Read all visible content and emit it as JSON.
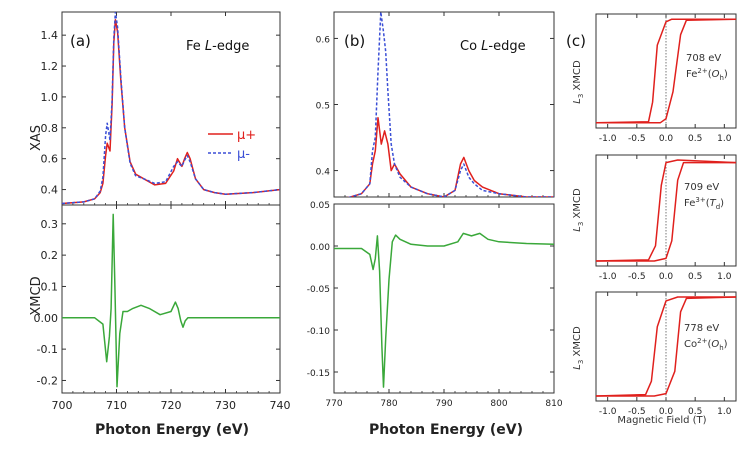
{
  "colors": {
    "mu_plus": "#e0201d",
    "mu_minus": "#3b4fd6",
    "xmcd": "#3aa83a",
    "loop": "#e0201d",
    "axis": "#333333"
  },
  "panels": {
    "a": {
      "tag": "(a)",
      "edge_prefix": "Fe ",
      "edge_italic": "L",
      "edge_suffix": "-edge",
      "xas_ylabel": "XAS",
      "xmcd_ylabel": "XMCD",
      "xlabel": "Photon Energy (eV)",
      "legend": [
        {
          "label": "μ+"
        },
        {
          "label": "μ-"
        }
      ]
    },
    "b": {
      "tag": "(b)",
      "edge_prefix": "Co ",
      "edge_italic": "L",
      "edge_suffix": "-edge",
      "xlabel": "Photon Energy (eV)"
    },
    "c": {
      "tag": "(c)",
      "xlabel": "Magnetic Field (T)",
      "ylabel_sub": "3",
      "ylabel_main": " XMCD",
      "loops": [
        {
          "energy": "708 eV",
          "ion": "Fe",
          "charge": "2+",
          "site": "O",
          "site_sub": "h"
        },
        {
          "energy": "709 eV",
          "ion": "Fe",
          "charge": "3+",
          "site": "T",
          "site_sub": "d"
        },
        {
          "energy": "778 eV",
          "ion": "Co",
          "charge": "2+",
          "site": "O",
          "site_sub": "h"
        }
      ]
    }
  },
  "chart_data": [
    {
      "type": "line",
      "panel": "a-top",
      "title": "Fe L-edge",
      "xlabel": "",
      "ylabel": "XAS",
      "xlim": [
        700,
        740
      ],
      "ylim": [
        0.3,
        1.55
      ],
      "xticks": [
        700,
        710,
        720,
        730,
        740
      ],
      "yticks": [
        0.4,
        0.6,
        0.8,
        1.0,
        1.2,
        1.4
      ],
      "ytick_labels": [
        "0.4",
        "0.6",
        "0.8",
        "1.0",
        "1.2",
        "1.4"
      ],
      "series": [
        {
          "name": "μ+",
          "color": "#e0201d",
          "dash": "",
          "x": [
            700,
            704,
            706,
            707,
            707.5,
            708,
            708.3,
            708.8,
            709.2,
            709.5,
            709.8,
            710.2,
            710.8,
            711.5,
            712.5,
            713.5,
            715,
            717,
            719,
            720.5,
            721.2,
            722,
            722.5,
            723,
            723.5,
            724.5,
            726,
            728,
            730,
            735,
            740
          ],
          "y": [
            0.31,
            0.32,
            0.34,
            0.38,
            0.44,
            0.62,
            0.7,
            0.65,
            0.95,
            1.35,
            1.5,
            1.42,
            1.1,
            0.8,
            0.58,
            0.5,
            0.47,
            0.43,
            0.44,
            0.52,
            0.6,
            0.55,
            0.6,
            0.64,
            0.6,
            0.47,
            0.4,
            0.38,
            0.37,
            0.38,
            0.4
          ]
        },
        {
          "name": "μ-",
          "color": "#3b4fd6",
          "dash": "3,2",
          "x": [
            700,
            704,
            706,
            707,
            707.5,
            708,
            708.3,
            708.8,
            709.2,
            709.5,
            709.8,
            710.2,
            710.8,
            711.5,
            712.5,
            713.5,
            715,
            717,
            719,
            720.5,
            721.2,
            722,
            722.5,
            723,
            723.5,
            724.5,
            726,
            728,
            730,
            735,
            740
          ],
          "y": [
            0.31,
            0.32,
            0.34,
            0.39,
            0.48,
            0.75,
            0.83,
            0.72,
            0.98,
            1.38,
            1.55,
            1.45,
            1.12,
            0.8,
            0.57,
            0.49,
            0.47,
            0.44,
            0.45,
            0.55,
            0.58,
            0.55,
            0.59,
            0.62,
            0.58,
            0.47,
            0.4,
            0.38,
            0.37,
            0.38,
            0.4
          ]
        }
      ],
      "legend": "right"
    },
    {
      "type": "line",
      "panel": "a-bottom",
      "xlabel": "Photon Energy (eV)",
      "ylabel": "XMCD",
      "xlim": [
        700,
        740
      ],
      "ylim": [
        -0.24,
        0.36
      ],
      "xticks": [
        700,
        710,
        720,
        730,
        740
      ],
      "yticks": [
        -0.2,
        -0.1,
        0.0,
        0.1,
        0.2,
        0.3
      ],
      "ytick_labels": [
        "-0.2",
        "-0.1",
        "0.00",
        "0.1",
        "0.2",
        "0.3"
      ],
      "series": [
        {
          "name": "",
          "color": "#3aa83a",
          "dash": "",
          "x": [
            700,
            706,
            707.5,
            708.2,
            708.7,
            709.0,
            709.4,
            709.7,
            710.1,
            710.6,
            711.2,
            712,
            713,
            714.5,
            716,
            718,
            720,
            720.8,
            721.3,
            721.8,
            722.2,
            722.6,
            723.1,
            724,
            726,
            730,
            740
          ],
          "y": [
            0.0,
            0.0,
            -0.02,
            -0.14,
            -0.06,
            0.03,
            0.33,
            0.1,
            -0.22,
            -0.05,
            0.02,
            0.02,
            0.03,
            0.04,
            0.03,
            0.01,
            0.02,
            0.05,
            0.03,
            -0.01,
            -0.03,
            -0.01,
            0.0,
            0.0,
            0.0,
            0.0,
            0.0
          ]
        }
      ]
    },
    {
      "type": "line",
      "panel": "b-top",
      "title": "Co L-edge",
      "xlim": [
        770,
        810
      ],
      "ylim": [
        0.36,
        0.64
      ],
      "xticks": [
        770,
        780,
        790,
        800,
        810
      ],
      "yticks": [
        0.4,
        0.5,
        0.6
      ],
      "ytick_labels": [
        "0.4",
        "0.5",
        "0.6"
      ],
      "series": [
        {
          "name": "μ+",
          "color": "#e0201d",
          "dash": "",
          "x": [
            770,
            773,
            775,
            776.5,
            777,
            777.5,
            778,
            778.6,
            779.2,
            779.8,
            780.4,
            781,
            782,
            784,
            787,
            790,
            792,
            793,
            793.6,
            794.5,
            795.5,
            797,
            800,
            805,
            810
          ],
          "y": [
            0.355,
            0.36,
            0.365,
            0.38,
            0.41,
            0.43,
            0.48,
            0.44,
            0.46,
            0.44,
            0.4,
            0.41,
            0.395,
            0.375,
            0.365,
            0.36,
            0.37,
            0.41,
            0.42,
            0.4,
            0.385,
            0.375,
            0.365,
            0.36,
            0.36
          ]
        },
        {
          "name": "μ-",
          "color": "#3b4fd6",
          "dash": "3,2",
          "x": [
            770,
            773,
            775,
            776.5,
            777,
            777.5,
            778,
            778.5,
            779.0,
            779.4,
            779.8,
            780.4,
            781,
            782,
            784,
            787,
            790,
            792,
            793,
            793.6,
            794.5,
            795.5,
            797,
            800,
            805,
            810
          ],
          "y": [
            0.355,
            0.36,
            0.365,
            0.38,
            0.43,
            0.45,
            0.55,
            0.64,
            0.61,
            0.58,
            0.52,
            0.44,
            0.41,
            0.39,
            0.375,
            0.365,
            0.36,
            0.37,
            0.4,
            0.41,
            0.39,
            0.38,
            0.37,
            0.365,
            0.36,
            0.36
          ]
        }
      ]
    },
    {
      "type": "line",
      "panel": "b-bottom",
      "xlabel": "Photon Energy (eV)",
      "ylabel": "",
      "xlim": [
        770,
        810
      ],
      "ylim": [
        -0.175,
        0.05
      ],
      "xticks": [
        770,
        780,
        790,
        800,
        810
      ],
      "yticks": [
        -0.15,
        -0.1,
        -0.05,
        0.0,
        0.05
      ],
      "ytick_labels": [
        "-0.15",
        "-0.10",
        "-0.05",
        "0.00",
        "0.05"
      ],
      "series": [
        {
          "name": "",
          "color": "#3aa83a",
          "dash": "",
          "x": [
            770,
            775,
            776.5,
            777.1,
            777.5,
            777.9,
            778.3,
            778.7,
            779.0,
            779.4,
            780.0,
            780.6,
            781.2,
            782,
            784,
            787,
            790,
            792.5,
            793.5,
            795,
            796.5,
            798,
            800,
            805,
            810
          ],
          "y": [
            -0.003,
            -0.003,
            -0.01,
            -0.028,
            -0.015,
            0.012,
            -0.03,
            -0.12,
            -0.168,
            -0.11,
            -0.04,
            0.005,
            0.013,
            0.008,
            0.002,
            0.0,
            0.0,
            0.005,
            0.015,
            0.012,
            0.015,
            0.008,
            0.005,
            0.003,
            0.002
          ]
        }
      ]
    },
    {
      "type": "line",
      "panel": "c-1",
      "xlim": [
        -1.2,
        1.2
      ],
      "ylim": [
        -1.1,
        1.1
      ],
      "xticks": [
        -1.0,
        -0.5,
        0.0,
        0.5,
        1.0
      ],
      "xtick_labels": [
        "-1.0",
        "-0.5",
        "0.0",
        "0.5",
        "1.0"
      ],
      "series": [
        {
          "name": "",
          "color": "#e0201d",
          "dash": "",
          "x": [
            -1.2,
            -0.3,
            -0.23,
            -0.15,
            0.0,
            0.1,
            0.18,
            0.3,
            1.2
          ],
          "y": [
            -1.0,
            -0.98,
            -0.6,
            0.5,
            0.95,
            1.0,
            1.0,
            1.0,
            1.0
          ]
        },
        {
          "name": "",
          "color": "#e0201d",
          "dash": "",
          "x": [
            1.2,
            0.35,
            0.25,
            0.12,
            0.0,
            -0.1,
            -0.2,
            -0.3,
            -1.2
          ],
          "y": [
            1.0,
            0.98,
            0.7,
            -0.4,
            -0.92,
            -1.0,
            -1.0,
            -1.0,
            -1.0
          ]
        }
      ]
    },
    {
      "type": "line",
      "panel": "c-2",
      "xlim": [
        -1.2,
        1.2
      ],
      "ylim": [
        -1.1,
        1.1
      ],
      "xticks": [
        -1.0,
        -0.5,
        0.0,
        0.5,
        1.0
      ],
      "xtick_labels": [
        "-1.0",
        "-0.5",
        "0.0",
        "0.5",
        "1.0"
      ],
      "series": [
        {
          "name": "",
          "color": "#e0201d",
          "dash": "",
          "x": [
            -1.2,
            -0.3,
            -0.18,
            -0.08,
            0.0,
            0.2,
            1.2
          ],
          "y": [
            -1.0,
            -0.98,
            -0.7,
            0.5,
            0.95,
            1.0,
            0.95
          ]
        },
        {
          "name": "",
          "color": "#e0201d",
          "dash": "",
          "x": [
            1.2,
            0.3,
            0.2,
            0.1,
            0.0,
            -0.2,
            -1.2
          ],
          "y": [
            0.95,
            0.95,
            0.6,
            -0.6,
            -0.95,
            -1.0,
            -1.0
          ]
        }
      ]
    },
    {
      "type": "line",
      "panel": "c-3",
      "xlim": [
        -1.2,
        1.2
      ],
      "ylim": [
        -1.1,
        1.1
      ],
      "xticks": [
        -1.0,
        -0.5,
        0.0,
        0.5,
        1.0
      ],
      "xtick_labels": [
        "-1.0",
        "-0.5",
        "0.0",
        "0.5",
        "1.0"
      ],
      "series": [
        {
          "name": "",
          "color": "#e0201d",
          "dash": "",
          "x": [
            -1.2,
            -0.35,
            -0.25,
            -0.15,
            0.0,
            0.2,
            1.2
          ],
          "y": [
            -1.0,
            -0.97,
            -0.7,
            0.4,
            0.92,
            1.0,
            1.0
          ]
        },
        {
          "name": "",
          "color": "#e0201d",
          "dash": "",
          "x": [
            1.2,
            0.35,
            0.25,
            0.15,
            0.0,
            -0.2,
            -1.2
          ],
          "y": [
            1.0,
            0.97,
            0.7,
            -0.5,
            -0.95,
            -1.0,
            -1.0
          ]
        }
      ]
    }
  ]
}
